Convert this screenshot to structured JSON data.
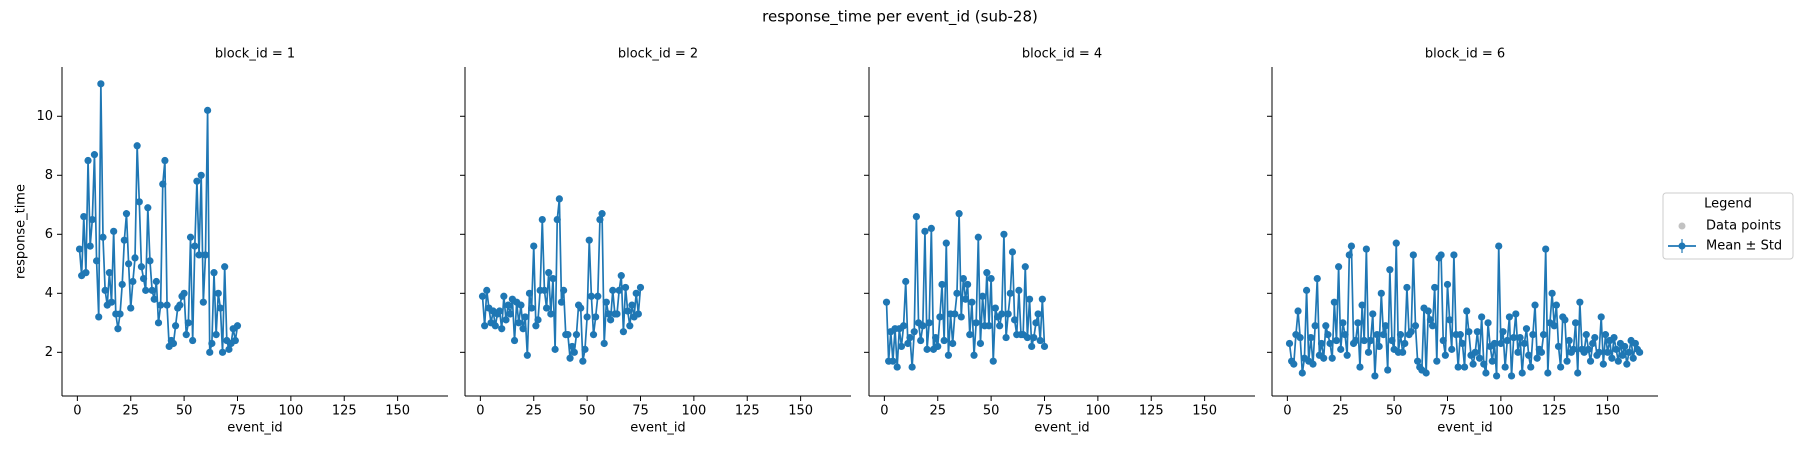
{
  "title": "response_time per event_id (sub-28)",
  "legend": {
    "title": "Legend",
    "entries": [
      {
        "name": "Data points",
        "color": "#bbbbbb"
      },
      {
        "name": "Mean ± Std",
        "color": "#1f77b4"
      }
    ]
  },
  "chart_data": [
    {
      "type": "line",
      "title": "block_id = 1",
      "xlabel": "event_id",
      "ylabel": "response_time",
      "color": "#1f77b4",
      "xlim": [
        -7.2,
        173.6
      ],
      "ylim": [
        0.52,
        11.67
      ],
      "xticks": [
        0,
        25,
        50,
        75,
        100,
        125,
        150
      ],
      "yticks": [
        2,
        4,
        6,
        8,
        10
      ],
      "x": [
        1,
        2,
        3,
        4,
        5,
        6,
        7,
        8,
        9,
        10,
        11,
        12,
        13,
        14,
        15,
        16,
        17,
        18,
        19,
        20,
        21,
        22,
        23,
        24,
        25,
        26,
        27,
        28,
        29,
        30,
        31,
        32,
        33,
        34,
        35,
        36,
        37,
        38,
        39,
        40,
        41,
        42,
        43,
        44,
        45,
        46,
        47,
        48,
        49,
        50,
        51,
        52,
        53,
        54,
        55,
        56,
        57,
        58,
        59,
        60,
        61,
        62,
        63,
        64,
        65,
        66,
        67,
        68,
        69,
        70,
        71,
        72,
        73,
        74,
        75
      ],
      "values": [
        5.5,
        4.6,
        6.6,
        4.7,
        8.5,
        5.6,
        6.5,
        8.7,
        5.1,
        3.2,
        11.1,
        5.9,
        4.1,
        3.6,
        4.7,
        3.7,
        6.1,
        3.3,
        2.8,
        3.3,
        4.3,
        5.8,
        6.7,
        5.0,
        3.5,
        4.4,
        5.2,
        9.0,
        7.1,
        4.9,
        4.5,
        4.1,
        6.9,
        5.1,
        4.1,
        3.8,
        4.4,
        3.0,
        3.6,
        7.7,
        8.5,
        3.6,
        2.2,
        2.4,
        2.3,
        2.9,
        3.5,
        3.6,
        3.9,
        4.0,
        2.6,
        3.0,
        5.9,
        2.4,
        5.6,
        7.8,
        5.3,
        8.0,
        3.7,
        5.3,
        10.2,
        2.0,
        2.3,
        4.7,
        2.6,
        4.0,
        3.5,
        2.0,
        4.9,
        2.4,
        2.1,
        2.3,
        2.8,
        2.4,
        2.9
      ]
    },
    {
      "type": "line",
      "title": "block_id = 2",
      "xlabel": "event_id",
      "color": "#1f77b4",
      "xlim": [
        -7.2,
        173.6
      ],
      "ylim": [
        0.52,
        11.67
      ],
      "xticks": [
        0,
        25,
        50,
        75,
        100,
        125,
        150
      ],
      "yticks": [
        2,
        4,
        6,
        8,
        10
      ],
      "x": [
        1,
        2,
        3,
        4,
        5,
        6,
        7,
        8,
        9,
        10,
        11,
        12,
        13,
        14,
        15,
        16,
        17,
        18,
        19,
        20,
        21,
        22,
        23,
        24,
        25,
        26,
        27,
        28,
        29,
        30,
        31,
        32,
        33,
        34,
        35,
        36,
        37,
        38,
        39,
        40,
        41,
        42,
        43,
        44,
        45,
        46,
        47,
        48,
        49,
        50,
        51,
        52,
        53,
        54,
        55,
        56,
        57,
        58,
        59,
        60,
        61,
        62,
        63,
        64,
        65,
        66,
        67,
        68,
        69,
        70,
        71,
        72,
        73,
        74,
        75
      ],
      "values": [
        3.9,
        2.9,
        4.1,
        3.5,
        3.0,
        3.4,
        2.9,
        3.3,
        3.4,
        2.8,
        3.9,
        3.1,
        3.6,
        3.3,
        3.8,
        2.4,
        3.7,
        3.0,
        3.6,
        2.8,
        3.2,
        1.9,
        4.0,
        3.5,
        5.6,
        2.9,
        3.1,
        4.1,
        6.5,
        4.1,
        3.5,
        4.7,
        3.3,
        4.5,
        2.1,
        6.5,
        7.2,
        3.7,
        4.1,
        2.6,
        2.6,
        1.8,
        2.2,
        2.0,
        2.6,
        3.6,
        3.5,
        1.7,
        2.1,
        3.2,
        5.8,
        3.9,
        2.6,
        3.2,
        3.9,
        6.5,
        6.7,
        2.3,
        3.7,
        3.3,
        3.1,
        4.1,
        3.3,
        3.3,
        4.1,
        4.6,
        2.7,
        4.2,
        3.4,
        2.9,
        3.6,
        3.2,
        4.0,
        3.3,
        4.2
      ]
    },
    {
      "type": "line",
      "title": "block_id = 4",
      "xlabel": "event_id",
      "color": "#1f77b4",
      "xlim": [
        -7.2,
        173.6
      ],
      "ylim": [
        0.52,
        11.67
      ],
      "xticks": [
        0,
        25,
        50,
        75,
        100,
        125,
        150
      ],
      "yticks": [
        2,
        4,
        6,
        8,
        10
      ],
      "x": [
        1,
        2,
        3,
        4,
        5,
        6,
        7,
        8,
        9,
        10,
        11,
        12,
        13,
        14,
        15,
        16,
        17,
        18,
        19,
        20,
        21,
        22,
        23,
        24,
        25,
        26,
        27,
        28,
        29,
        30,
        31,
        32,
        33,
        34,
        35,
        36,
        37,
        38,
        39,
        40,
        41,
        42,
        43,
        44,
        45,
        46,
        47,
        48,
        49,
        50,
        51,
        52,
        53,
        54,
        55,
        56,
        57,
        58,
        59,
        60,
        61,
        62,
        63,
        64,
        65,
        66,
        67,
        68,
        69,
        70,
        71,
        72,
        73,
        74,
        75
      ],
      "values": [
        3.7,
        1.7,
        2.7,
        1.7,
        2.8,
        1.5,
        2.8,
        2.2,
        2.9,
        4.4,
        2.3,
        2.5,
        1.5,
        2.7,
        6.6,
        3.0,
        2.4,
        2.9,
        6.1,
        2.1,
        3.0,
        6.2,
        2.1,
        2.5,
        2.2,
        3.2,
        4.3,
        2.4,
        5.7,
        1.9,
        3.3,
        2.3,
        3.3,
        4.0,
        6.7,
        3.2,
        4.5,
        3.8,
        4.3,
        2.6,
        3.7,
        1.9,
        3.0,
        5.9,
        2.3,
        3.9,
        2.9,
        4.7,
        2.9,
        4.5,
        1.7,
        3.5,
        3.2,
        2.9,
        3.3,
        6.0,
        2.5,
        3.3,
        4.0,
        5.4,
        3.1,
        2.6,
        4.1,
        2.6,
        2.6,
        4.9,
        2.5,
        3.8,
        2.2,
        2.5,
        3.0,
        3.3,
        2.4,
        3.8,
        2.2
      ]
    },
    {
      "type": "line",
      "title": "block_id = 6",
      "xlabel": "event_id",
      "color": "#1f77b4",
      "xlim": [
        -7.2,
        173.6
      ],
      "ylim": [
        0.52,
        11.67
      ],
      "xticks": [
        0,
        25,
        50,
        75,
        100,
        125,
        150
      ],
      "yticks": [
        2,
        4,
        6,
        8,
        10
      ],
      "x": [
        1,
        2,
        3,
        4,
        5,
        6,
        7,
        8,
        9,
        10,
        11,
        12,
        13,
        14,
        15,
        16,
        17,
        18,
        19,
        20,
        21,
        22,
        23,
        24,
        25,
        26,
        27,
        28,
        29,
        30,
        31,
        32,
        33,
        34,
        35,
        36,
        37,
        38,
        39,
        40,
        41,
        42,
        43,
        44,
        45,
        46,
        47,
        48,
        49,
        50,
        51,
        52,
        53,
        54,
        55,
        56,
        57,
        58,
        59,
        60,
        61,
        62,
        63,
        64,
        65,
        66,
        67,
        68,
        69,
        70,
        71,
        72,
        73,
        74,
        75,
        76,
        77,
        78,
        79,
        80,
        81,
        82,
        83,
        84,
        85,
        86,
        87,
        88,
        89,
        90,
        91,
        92,
        93,
        94,
        95,
        96,
        97,
        98,
        99,
        100,
        101,
        102,
        103,
        104,
        105,
        106,
        107,
        108,
        109,
        110,
        111,
        112,
        113,
        114,
        115,
        116,
        117,
        118,
        119,
        120,
        121,
        122,
        123,
        124,
        125,
        126,
        127,
        128,
        129,
        130,
        131,
        132,
        133,
        134,
        135,
        136,
        137,
        138,
        139,
        140,
        141,
        142,
        143,
        144,
        145,
        146,
        147,
        148,
        149,
        150,
        151,
        152,
        153,
        154,
        155,
        156,
        157,
        158,
        159,
        160,
        161,
        162,
        163,
        164,
        165
      ],
      "values": [
        2.3,
        1.7,
        1.6,
        2.6,
        3.4,
        2.5,
        1.3,
        1.8,
        4.1,
        1.7,
        2.5,
        1.6,
        2.9,
        4.5,
        1.9,
        2.3,
        1.8,
        2.9,
        2.6,
        2.3,
        1.8,
        3.7,
        2.4,
        4.9,
        2.1,
        3.0,
        2.6,
        1.9,
        5.3,
        5.6,
        2.3,
        2.4,
        3.0,
        1.5,
        3.6,
        2.4,
        5.5,
        2.0,
        2.4,
        3.3,
        1.2,
        2.6,
        2.2,
        4.0,
        2.6,
        2.9,
        1.4,
        4.8,
        2.4,
        2.1,
        5.7,
        2.0,
        2.6,
        2.0,
        2.3,
        4.2,
        2.6,
        2.7,
        5.3,
        2.9,
        1.7,
        1.5,
        1.4,
        3.5,
        1.3,
        3.4,
        3.1,
        2.9,
        4.2,
        1.7,
        5.2,
        5.3,
        2.4,
        1.9,
        4.3,
        3.1,
        2.1,
        5.3,
        2.6,
        1.5,
        2.6,
        2.3,
        1.5,
        3.4,
        2.7,
        1.9,
        1.6,
        2.0,
        2.7,
        1.8,
        3.2,
        1.6,
        1.3,
        3.0,
        2.2,
        1.7,
        2.3,
        1.2,
        5.6,
        2.3,
        2.7,
        1.5,
        2.4,
        3.2,
        1.2,
        2.5,
        3.3,
        2.0,
        2.5,
        1.3,
        2.3,
        2.8,
        1.9,
        1.5,
        2.6,
        3.6,
        1.8,
        2.1,
        2.0,
        2.6,
        5.5,
        1.3,
        3.0,
        4.0,
        2.9,
        3.6,
        2.2,
        1.5,
        3.2,
        3.1,
        1.7,
        2.4,
        2.0,
        2.1,
        3.0,
        1.3,
        3.7,
        2.1,
        2.0,
        2.6,
        2.1,
        1.7,
        2.3,
        2.5,
        1.9,
        2.0,
        3.2,
        1.6,
        2.6,
        2.0,
        2.4,
        1.8,
        2.5,
        2.1,
        1.7,
        2.3,
        1.9,
        2.2,
        1.6,
        2.0,
        2.4,
        1.8,
        2.3,
        2.1,
        2.0
      ]
    }
  ]
}
